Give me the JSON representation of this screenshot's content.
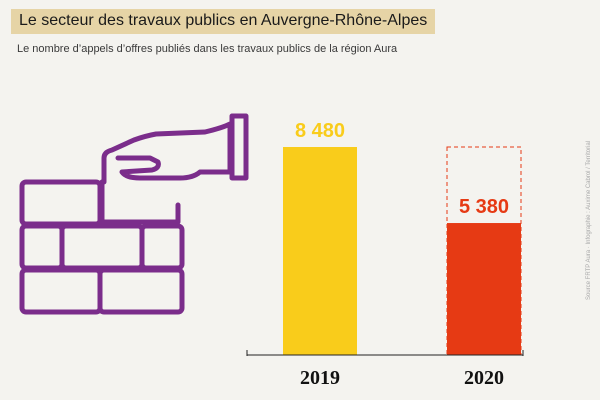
{
  "title": "Le secteur des travaux publics en Auvergne-Rhône-Alpes",
  "subtitle": "Le nombre d’appels d’offres publiés dans les travaux publics de la région Aura",
  "source": "Source FRTP Aura · Infographie : Auxime Cabrol / Territorial",
  "colors": {
    "title_band": "#e6d4a6",
    "bar_2019": "#f9cc1b",
    "bar_2020": "#e63a14",
    "icon": "#7b2d8b",
    "dashed_outline": "#e63a14"
  },
  "illustration": {
    "icon_name": "hand-laying-brick-wall-icon"
  },
  "chart_data": {
    "type": "bar",
    "title": "",
    "xlabel": "",
    "ylabel": "",
    "categories": [
      "2019",
      "2020"
    ],
    "values": [
      8480,
      5380
    ],
    "value_labels": [
      "8 480",
      "5 380"
    ],
    "ylim": [
      0,
      8480
    ],
    "grid": false,
    "reference_outline": {
      "category": "2020",
      "value": 8480
    }
  }
}
